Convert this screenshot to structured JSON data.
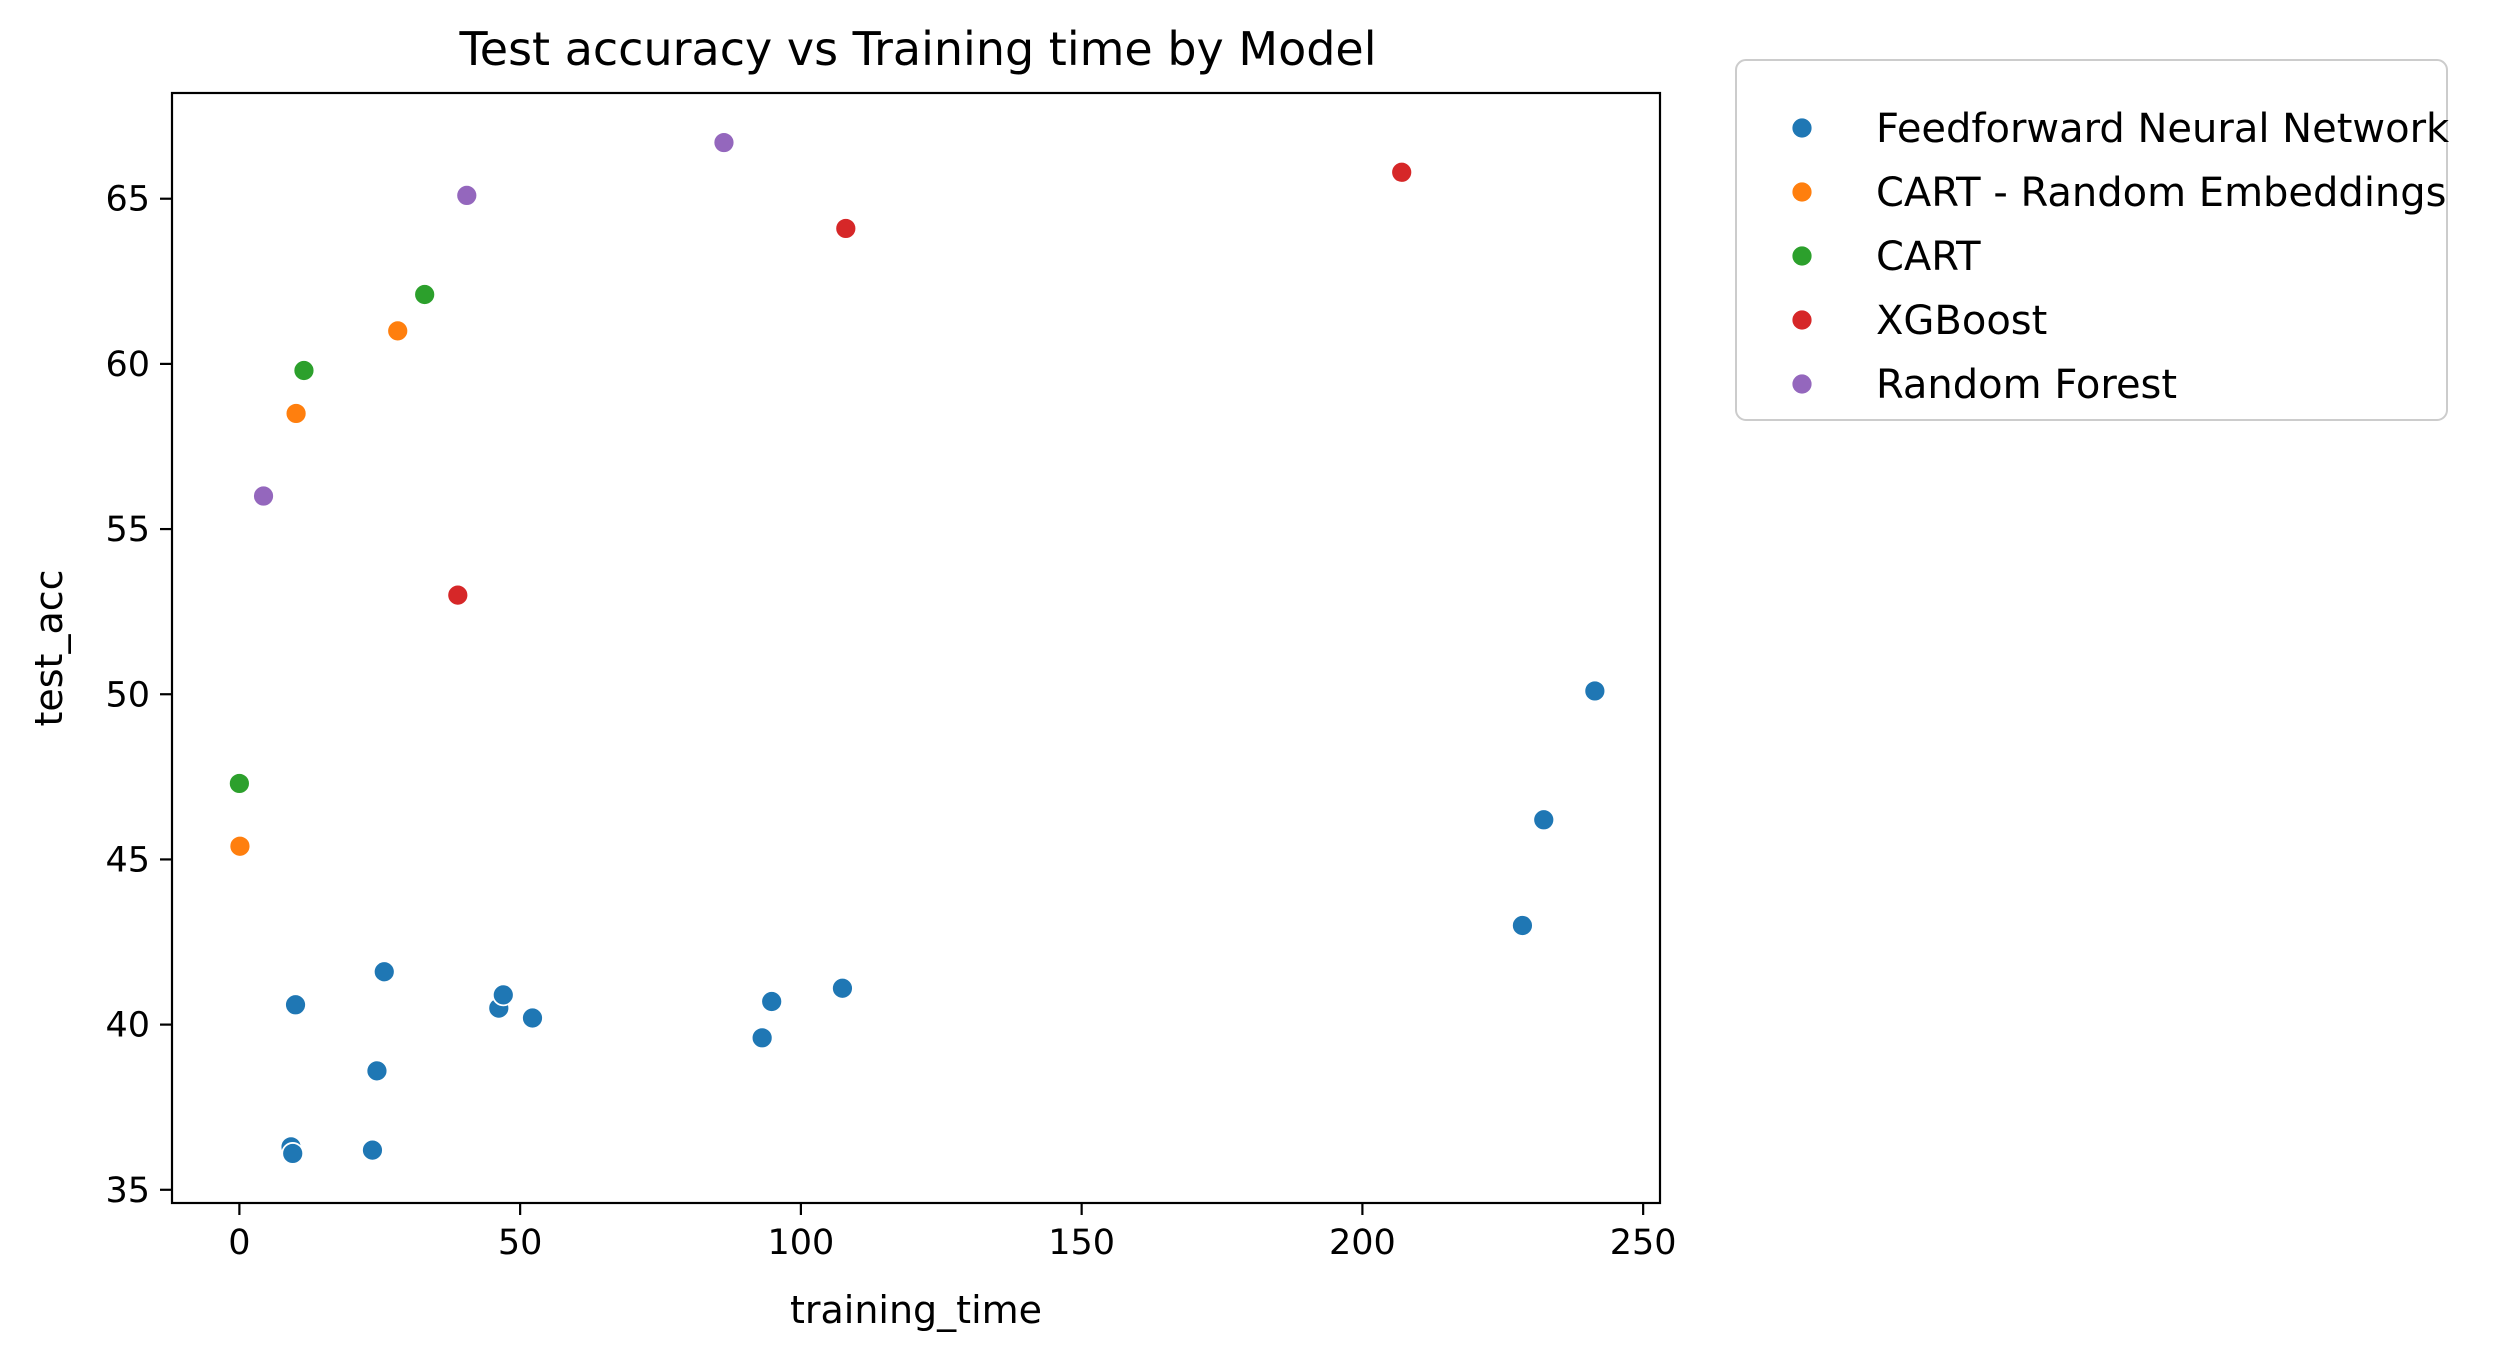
{
  "chart_data": {
    "type": "scatter",
    "title": "Test accuracy vs Training time by Model",
    "xlabel": "training_time",
    "ylabel": "test_acc",
    "xlim": [
      -12,
      253
    ],
    "ylim": [
      34.6,
      68.2
    ],
    "xticks": [
      0,
      50,
      100,
      150,
      200,
      250
    ],
    "yticks": [
      35,
      40,
      45,
      50,
      55,
      60,
      65
    ],
    "grid": false,
    "legend_position": "outside-right-top",
    "series": [
      {
        "name": "Feedforward Neural Network",
        "color": "#1f77b4",
        "points": [
          {
            "x": 9.2,
            "y": 36.3
          },
          {
            "x": 9.5,
            "y": 36.1
          },
          {
            "x": 23.7,
            "y": 36.2
          },
          {
            "x": 24.5,
            "y": 38.6
          },
          {
            "x": 10.0,
            "y": 40.6
          },
          {
            "x": 25.8,
            "y": 41.6
          },
          {
            "x": 46.2,
            "y": 40.5
          },
          {
            "x": 47.0,
            "y": 40.9
          },
          {
            "x": 52.2,
            "y": 40.2
          },
          {
            "x": 93.1,
            "y": 39.6
          },
          {
            "x": 94.8,
            "y": 40.7
          },
          {
            "x": 107.4,
            "y": 41.1
          },
          {
            "x": 228.5,
            "y": 43.0
          },
          {
            "x": 232.3,
            "y": 46.2
          },
          {
            "x": 241.4,
            "y": 50.1
          }
        ]
      },
      {
        "name": "CART - Random Embeddings",
        "color": "#ff7f0e",
        "points": [
          {
            "x": 0.1,
            "y": 45.4
          },
          {
            "x": 10.1,
            "y": 58.5
          },
          {
            "x": 28.2,
            "y": 61.0
          }
        ]
      },
      {
        "name": "CART",
        "color": "#2ca02c",
        "points": [
          {
            "x": 0.0,
            "y": 47.3
          },
          {
            "x": 11.5,
            "y": 59.8
          },
          {
            "x": 33.0,
            "y": 62.1
          }
        ]
      },
      {
        "name": "XGBoost",
        "color": "#d62728",
        "points": [
          {
            "x": 38.9,
            "y": 53.0
          },
          {
            "x": 108.0,
            "y": 64.1
          },
          {
            "x": 207.0,
            "y": 65.8
          }
        ]
      },
      {
        "name": "Random Forest",
        "color": "#9467bd",
        "points": [
          {
            "x": 4.3,
            "y": 56.0
          },
          {
            "x": 40.5,
            "y": 65.1
          },
          {
            "x": 86.3,
            "y": 66.7
          }
        ]
      }
    ]
  }
}
